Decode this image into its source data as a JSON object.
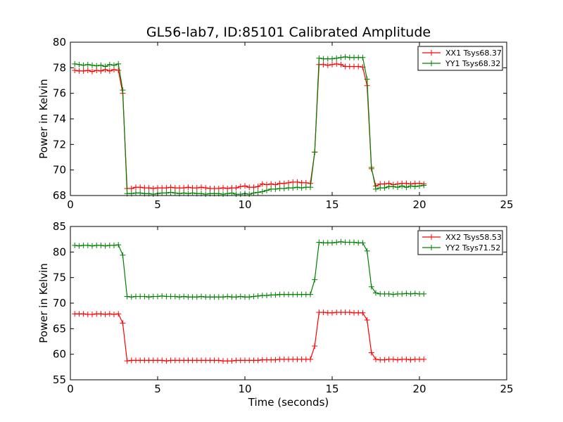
{
  "chart_data": [
    {
      "type": "line",
      "title": "GL56-lab7, ID:85101 Calibrated Amplitude",
      "xlabel": "",
      "ylabel": "Power in Kelvin",
      "xlim": [
        0,
        25
      ],
      "ylim": [
        68,
        80
      ],
      "xticks": [
        "0",
        "5",
        "10",
        "15",
        "20",
        "25"
      ],
      "yticks": [
        "68",
        "70",
        "72",
        "74",
        "76",
        "78",
        "80"
      ],
      "grid": false,
      "legend_position": "top-right",
      "x": [
        0.25,
        0.5,
        0.75,
        1.0,
        1.25,
        1.5,
        1.75,
        2.0,
        2.25,
        2.5,
        2.75,
        3.0,
        3.25,
        3.5,
        3.75,
        4.0,
        4.25,
        4.5,
        4.75,
        5.0,
        5.25,
        5.5,
        5.75,
        6.0,
        6.25,
        6.5,
        6.75,
        7.0,
        7.25,
        7.5,
        7.75,
        8.0,
        8.25,
        8.5,
        8.75,
        9.0,
        9.25,
        9.5,
        9.75,
        10.0,
        10.25,
        10.5,
        10.75,
        11.0,
        11.25,
        11.5,
        11.75,
        12.0,
        12.25,
        12.5,
        12.75,
        13.0,
        13.25,
        13.5,
        13.75,
        14.0,
        14.25,
        14.5,
        14.75,
        15.0,
        15.25,
        15.5,
        15.75,
        16.0,
        16.25,
        16.5,
        16.75,
        17.0,
        17.25,
        17.5,
        17.75,
        18.0,
        18.25,
        18.5,
        18.75,
        19.0,
        19.25,
        19.5,
        19.75,
        20.0,
        20.25
      ],
      "series": [
        {
          "name": "XX1 Tsys68.37",
          "color": "#ff0000",
          "values": [
            77.8,
            77.75,
            77.75,
            77.8,
            77.7,
            77.8,
            77.75,
            77.85,
            77.75,
            77.85,
            77.8,
            76.0,
            68.55,
            68.55,
            68.65,
            68.65,
            68.6,
            68.6,
            68.55,
            68.6,
            68.6,
            68.6,
            68.65,
            68.6,
            68.6,
            68.6,
            68.65,
            68.6,
            68.6,
            68.65,
            68.6,
            68.55,
            68.55,
            68.55,
            68.6,
            68.55,
            68.6,
            68.6,
            68.7,
            68.75,
            68.65,
            68.65,
            68.7,
            68.9,
            68.85,
            68.9,
            68.85,
            68.95,
            68.95,
            69.0,
            69.05,
            69.05,
            69.0,
            69.0,
            68.95,
            71.4,
            78.25,
            78.25,
            78.2,
            78.25,
            78.3,
            78.25,
            78.1,
            78.1,
            78.1,
            78.1,
            78.05,
            76.6,
            70.1,
            68.75,
            68.9,
            68.9,
            68.95,
            68.85,
            68.9,
            68.95,
            68.95,
            68.9,
            68.95,
            68.95,
            68.9
          ]
        },
        {
          "name": "YY1 Tsys68.32",
          "color": "#008000",
          "values": [
            78.3,
            78.25,
            78.2,
            78.25,
            78.2,
            78.15,
            78.2,
            78.1,
            78.25,
            78.2,
            78.3,
            76.25,
            68.15,
            68.15,
            68.2,
            68.2,
            68.15,
            68.15,
            68.1,
            68.15,
            68.2,
            68.2,
            68.25,
            68.2,
            68.15,
            68.2,
            68.15,
            68.2,
            68.15,
            68.15,
            68.1,
            68.15,
            68.15,
            68.15,
            68.1,
            68.15,
            68.2,
            68.1,
            68.1,
            68.15,
            68.1,
            68.2,
            68.25,
            68.3,
            68.4,
            68.5,
            68.5,
            68.55,
            68.55,
            68.6,
            68.6,
            68.65,
            68.6,
            68.65,
            68.65,
            71.4,
            78.75,
            78.7,
            78.7,
            78.7,
            78.75,
            78.8,
            78.85,
            78.8,
            78.8,
            78.8,
            78.8,
            77.1,
            70.2,
            68.5,
            68.6,
            68.6,
            68.7,
            68.7,
            68.65,
            68.75,
            68.65,
            68.75,
            68.7,
            68.75,
            68.8
          ]
        }
      ]
    },
    {
      "type": "line",
      "title": "",
      "xlabel": "Time (seconds)",
      "ylabel": "Power in Kelvin",
      "xlim": [
        0,
        25
      ],
      "ylim": [
        55,
        85
      ],
      "xticks": [
        "0",
        "5",
        "10",
        "15",
        "20",
        "25"
      ],
      "yticks": [
        "55",
        "60",
        "65",
        "70",
        "75",
        "80",
        "85"
      ],
      "grid": false,
      "legend_position": "top-right",
      "x": [
        0.25,
        0.5,
        0.75,
        1.0,
        1.25,
        1.5,
        1.75,
        2.0,
        2.25,
        2.5,
        2.75,
        3.0,
        3.25,
        3.5,
        3.75,
        4.0,
        4.25,
        4.5,
        4.75,
        5.0,
        5.25,
        5.5,
        5.75,
        6.0,
        6.25,
        6.5,
        6.75,
        7.0,
        7.25,
        7.5,
        7.75,
        8.0,
        8.25,
        8.5,
        8.75,
        9.0,
        9.25,
        9.5,
        9.75,
        10.0,
        10.25,
        10.5,
        10.75,
        11.0,
        11.25,
        11.5,
        11.75,
        12.0,
        12.25,
        12.5,
        12.75,
        13.0,
        13.25,
        13.5,
        13.75,
        14.0,
        14.25,
        14.5,
        14.75,
        15.0,
        15.25,
        15.5,
        15.75,
        16.0,
        16.25,
        16.5,
        16.75,
        17.0,
        17.25,
        17.5,
        17.75,
        18.0,
        18.25,
        18.5,
        18.75,
        19.0,
        19.25,
        19.5,
        19.75,
        20.0,
        20.25
      ],
      "series": [
        {
          "name": "XX2 Tsys58.53",
          "color": "#ff0000",
          "values": [
            67.9,
            67.9,
            67.9,
            67.8,
            67.8,
            67.9,
            67.9,
            67.8,
            67.9,
            67.8,
            67.9,
            66.1,
            58.7,
            58.8,
            58.8,
            58.8,
            58.8,
            58.8,
            58.8,
            58.8,
            58.8,
            58.7,
            58.8,
            58.8,
            58.8,
            58.8,
            58.8,
            58.8,
            58.8,
            58.8,
            58.8,
            58.8,
            58.8,
            58.8,
            58.7,
            58.7,
            58.7,
            58.8,
            58.8,
            58.8,
            58.8,
            58.8,
            58.8,
            58.9,
            58.9,
            58.9,
            58.9,
            59.0,
            59.0,
            59.0,
            59.0,
            59.0,
            59.0,
            59.0,
            59.0,
            61.6,
            68.2,
            68.2,
            68.1,
            68.1,
            68.2,
            68.2,
            68.2,
            68.2,
            68.1,
            68.1,
            68.1,
            66.7,
            60.3,
            59.0,
            58.9,
            58.9,
            59.0,
            59.0,
            58.9,
            59.0,
            59.0,
            58.9,
            59.0,
            59.0,
            59.0
          ]
        },
        {
          "name": "YY2 Tsys71.52",
          "color": "#008000",
          "values": [
            81.3,
            81.2,
            81.3,
            81.3,
            81.2,
            81.3,
            81.3,
            81.2,
            81.3,
            81.3,
            81.4,
            79.4,
            71.3,
            71.2,
            71.3,
            71.3,
            71.3,
            71.2,
            71.3,
            71.3,
            71.4,
            71.3,
            71.3,
            71.3,
            71.2,
            71.3,
            71.2,
            71.2,
            71.2,
            71.3,
            71.2,
            71.2,
            71.2,
            71.2,
            71.2,
            71.3,
            71.2,
            71.2,
            71.3,
            71.2,
            71.2,
            71.3,
            71.4,
            71.5,
            71.5,
            71.6,
            71.6,
            71.7,
            71.7,
            71.7,
            71.7,
            71.7,
            71.7,
            71.7,
            71.7,
            74.6,
            81.9,
            81.8,
            81.8,
            81.8,
            81.9,
            82.0,
            81.9,
            81.9,
            81.9,
            81.8,
            81.8,
            80.2,
            73.2,
            72.0,
            71.8,
            71.8,
            71.8,
            71.7,
            71.8,
            71.8,
            71.9,
            71.8,
            71.9,
            71.8,
            71.8
          ]
        }
      ]
    }
  ]
}
